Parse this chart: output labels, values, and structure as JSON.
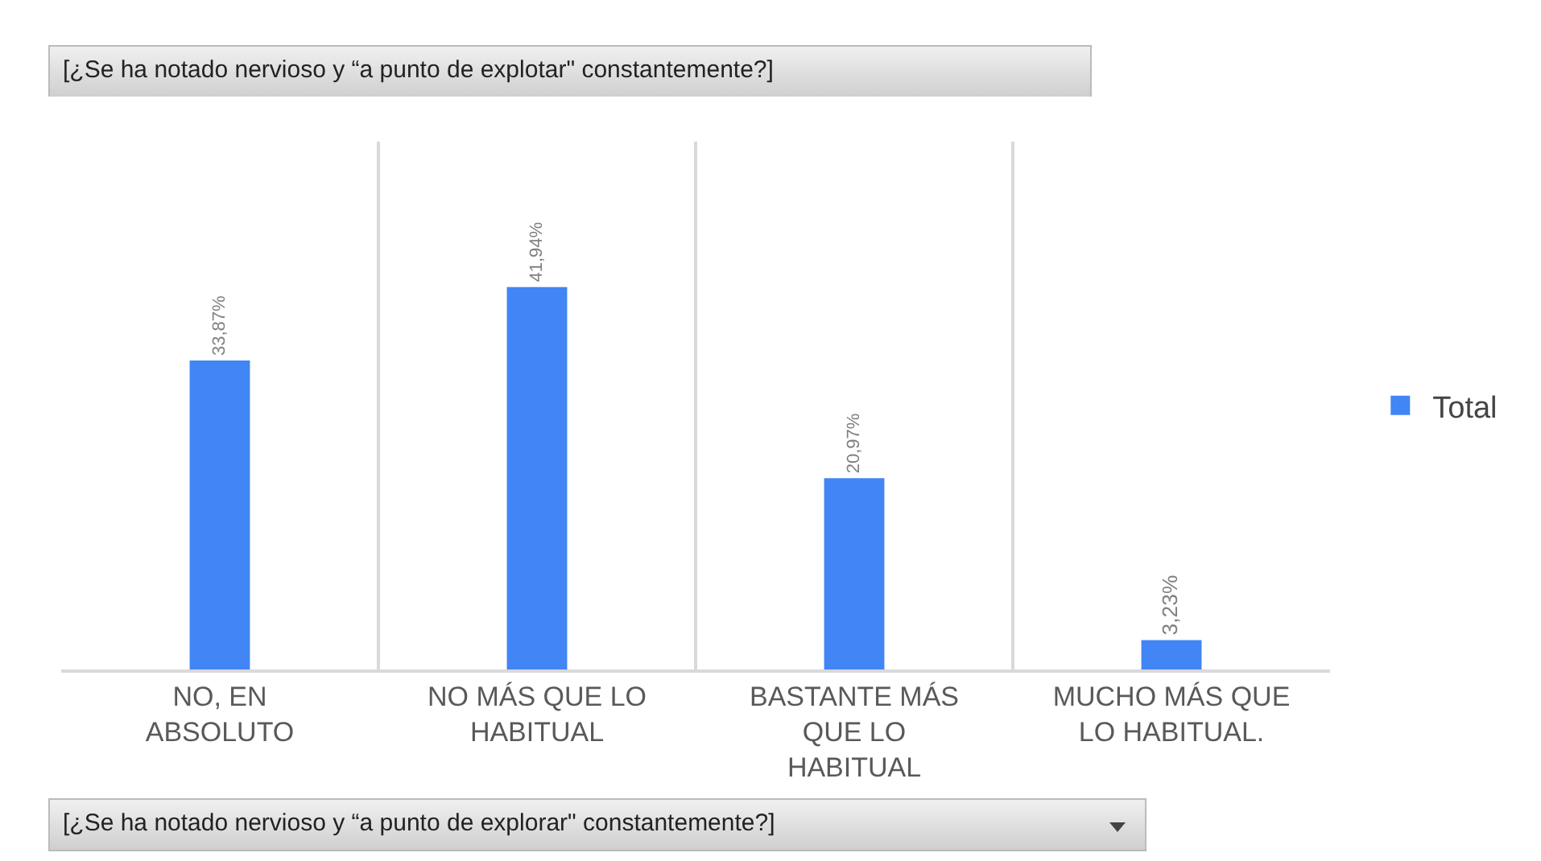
{
  "chart_data": {
    "type": "bar",
    "title": "[¿Se ha notado nervioso y “a punto de explotar\" constantemente?]",
    "annotations": [
      "[¿Se ha notado nervioso y “a punto de explorar\" constantemente?]"
    ],
    "categories": [
      "NO, EN ABSOLUTO",
      "NO MÁS QUE LO HABITUAL",
      "BASTANTE MÁS QUE LO HABITUAL",
      "MUCHO MÁS QUE LO HABITUAL."
    ],
    "series": [
      {
        "name": "Total",
        "color": "#4285f4",
        "values": [
          33.87,
          41.94,
          20.97,
          3.23
        ],
        "value_labels": [
          "33,87%",
          "41,94%",
          "20,97%",
          "3,23%"
        ]
      }
    ],
    "grid": "x",
    "legend": "right"
  }
}
